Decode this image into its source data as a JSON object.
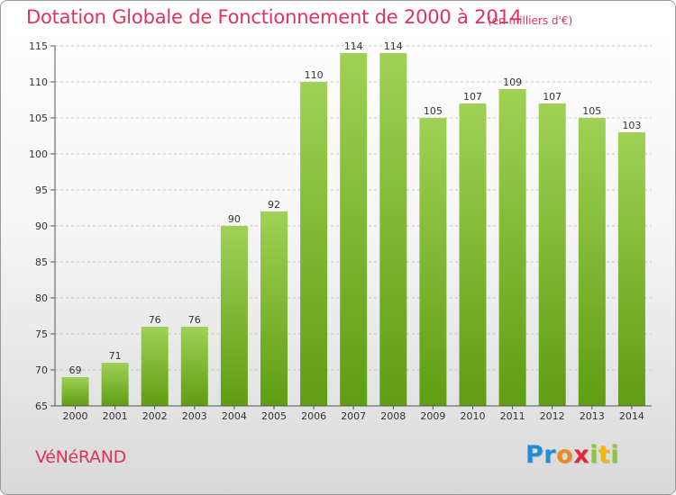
{
  "title": "Dotation Globale de Fonctionnement de 2000 à 2014",
  "subtitle": "(en milliers d'€)",
  "commune": "VéNéRAND",
  "logo": {
    "letters": [
      "P",
      "r",
      "o",
      "x",
      "i",
      "t",
      "i"
    ],
    "colors": [
      "#1e8fd6",
      "#1e8fd6",
      "#f08a1c",
      "#e2283a",
      "#8cc63f",
      "#f5b800",
      "#8cc63f"
    ]
  },
  "colors": {
    "accent": "#e0335a",
    "bar_top": "#9fd155",
    "bar_bottom": "#5f9d12"
  },
  "chart_data": {
    "type": "bar",
    "categories": [
      "2000",
      "2001",
      "2002",
      "2003",
      "2004",
      "2005",
      "2006",
      "2007",
      "2008",
      "2009",
      "2010",
      "2011",
      "2012",
      "2013",
      "2014"
    ],
    "values": [
      69,
      71,
      76,
      76,
      90,
      92,
      110,
      114,
      114,
      105,
      107,
      109,
      107,
      105,
      103
    ],
    "title": "Dotation Globale de Fonctionnement de 2000 à 2014",
    "ylim": [
      65,
      115
    ],
    "yticks": [
      65,
      70,
      75,
      80,
      85,
      90,
      95,
      100,
      105,
      110,
      115
    ],
    "grid": true
  }
}
